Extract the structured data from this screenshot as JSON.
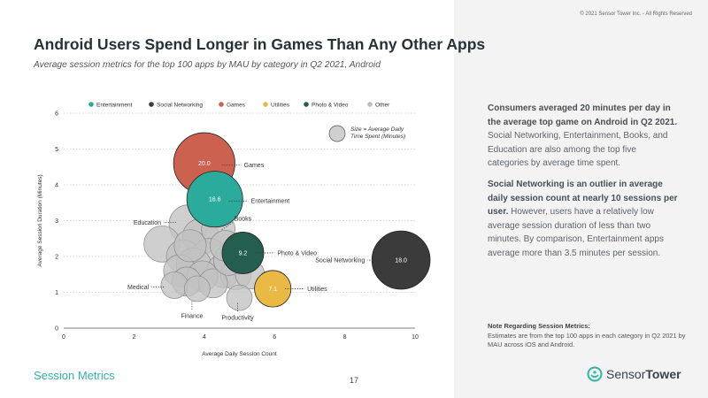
{
  "copyright": "© 2021 Sensor Tower Inc. - All Rights Reserved",
  "title": "Android Users Spend Longer in Games Than Any Other Apps",
  "subtitle": "Average session metrics for the top 100 apps by MAU by category in Q2 2021, Android",
  "section_label": "Session Metrics",
  "page_number": "17",
  "logo": {
    "part1": "Sensor",
    "part2": "Tower"
  },
  "sidebar": {
    "p1_bold": "Consumers averaged 20 minutes per day in the average top game on Android in Q2 2021.",
    "p1_rest": " Social Networking, Entertainment, Books, and Education are also among the top five categories by average time spent.",
    "p2_bold": "Social Networking is an outlier in average daily session count at nearly 10 sessions per user.",
    "p2_rest": " However, users have a relatively low average session duration of less than two minutes. By comparison, Entertainment apps average more than 3.5 minutes per session.",
    "note_title": "Note Regarding Session Metrics:",
    "note_text": "Estimates are from the top 100 apps in each category in Q2 2021 by MAU across iOS and Android."
  },
  "chart_data": {
    "type": "scatter",
    "xlabel": "Average Daily Session Count",
    "ylabel": "Average Session Duration (Minutes)",
    "xlim": [
      0,
      10
    ],
    "ylim": [
      0,
      6
    ],
    "xticks": [
      "0",
      "2",
      "4",
      "6",
      "8",
      "10"
    ],
    "yticks": [
      "0",
      "1",
      "2",
      "3",
      "4",
      "5",
      "6"
    ],
    "size_legend": [
      "Size = Average Daily",
      "Time Spent (Minutes)"
    ],
    "legend": [
      {
        "name": "Entertainment",
        "color": "#2bab9c"
      },
      {
        "name": "Social Networking",
        "color": "#3b3b3b"
      },
      {
        "name": "Games",
        "color": "#cd6150"
      },
      {
        "name": "Utilities",
        "color": "#e9b943"
      },
      {
        "name": "Photo & Video",
        "color": "#245e4f"
      },
      {
        "name": "Other",
        "color": "#bdbdbd"
      }
    ],
    "other_points": [
      {
        "x": 3.55,
        "y": 2.9,
        "size": 8.0
      },
      {
        "x": 2.8,
        "y": 2.35,
        "size": 7.0
      },
      {
        "x": 3.9,
        "y": 2.55,
        "size": 7.0
      },
      {
        "x": 4.4,
        "y": 2.75,
        "size": 6.0
      },
      {
        "x": 3.4,
        "y": 2.0,
        "size": 6.0
      },
      {
        "x": 4.15,
        "y": 2.0,
        "size": 7.0
      },
      {
        "x": 3.7,
        "y": 1.75,
        "size": 6.5
      },
      {
        "x": 4.55,
        "y": 1.6,
        "size": 6.0
      },
      {
        "x": 3.3,
        "y": 1.6,
        "size": 5.5
      },
      {
        "x": 3.95,
        "y": 1.45,
        "size": 5.0
      },
      {
        "x": 4.9,
        "y": 1.5,
        "size": 5.0
      },
      {
        "x": 5.3,
        "y": 1.5,
        "size": 4.5
      },
      {
        "x": 3.5,
        "y": 1.3,
        "size": 4.5
      },
      {
        "x": 3.15,
        "y": 1.2,
        "size": 3.8
      },
      {
        "x": 4.25,
        "y": 1.25,
        "size": 4.5
      },
      {
        "x": 3.8,
        "y": 1.1,
        "size": 3.5
      },
      {
        "x": 4.7,
        "y": 1.9,
        "size": 5.0
      },
      {
        "x": 5.0,
        "y": 0.85,
        "size": 3.5
      },
      {
        "x": 3.6,
        "y": 2.3,
        "size": 5.5
      },
      {
        "x": 4.6,
        "y": 2.3,
        "size": 5.0
      }
    ],
    "highlight_points": [
      {
        "name": "Games",
        "x": 4.0,
        "y": 4.6,
        "size": 20.0,
        "label": "20.0",
        "color": "#cd6150"
      },
      {
        "name": "Entertainment",
        "x": 4.3,
        "y": 3.6,
        "size": 16.6,
        "label": "16.6",
        "color": "#2bab9c"
      },
      {
        "name": "Photo & Video",
        "x": 5.1,
        "y": 2.1,
        "size": 9.2,
        "label": "9.2",
        "color": "#245e4f"
      },
      {
        "name": "Utilities",
        "x": 5.95,
        "y": 1.1,
        "size": 7.1,
        "label": "7.1",
        "color": "#e9b943"
      },
      {
        "name": "Social Networking",
        "x": 9.6,
        "y": 1.9,
        "size": 18.0,
        "label": "18.0",
        "color": "#3b3b3b"
      }
    ],
    "annotations": [
      {
        "text": "Games",
        "x": 4.5,
        "y": 4.55,
        "side": "right"
      },
      {
        "text": "Entertainment",
        "x": 4.7,
        "y": 3.55,
        "side": "right"
      },
      {
        "text": "Books",
        "x": 4.5,
        "y": 2.75,
        "side": "up"
      },
      {
        "text": "Education",
        "x": 3.2,
        "y": 2.95,
        "side": "left"
      },
      {
        "text": "Photo & Video",
        "x": 5.45,
        "y": 2.1,
        "side": "right"
      },
      {
        "text": "Social Networking",
        "x": 9.0,
        "y": 1.9,
        "side": "left"
      },
      {
        "text": "Utilities",
        "x": 6.3,
        "y": 1.1,
        "side": "right"
      },
      {
        "text": "Medical",
        "x": 2.85,
        "y": 1.15,
        "side": "left"
      },
      {
        "text": "Finance",
        "x": 3.65,
        "y": 0.75,
        "side": "down"
      },
      {
        "text": "Productivity",
        "x": 4.95,
        "y": 0.7,
        "side": "down"
      }
    ]
  }
}
